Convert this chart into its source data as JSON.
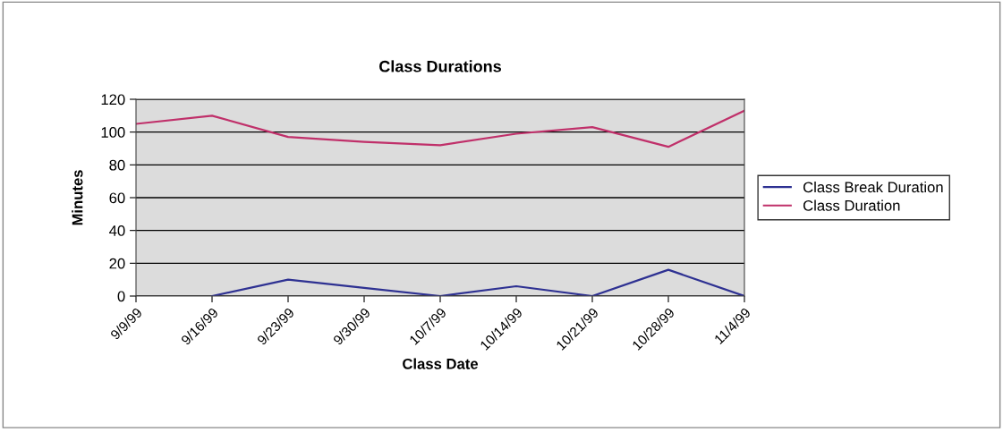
{
  "chart_data": {
    "type": "line",
    "title": "Class Durations",
    "xlabel": "Class Date",
    "ylabel": "Minutes",
    "categories": [
      "9/9/99",
      "9/16/99",
      "9/23/99",
      "9/30/99",
      "10/7/99",
      "10/14/99",
      "10/21/99",
      "10/28/99",
      "11/4/99"
    ],
    "series": [
      {
        "name": "Class Break Duration",
        "color": "#2e3192",
        "values": [
          null,
          0,
          10,
          5,
          0,
          6,
          0,
          16,
          0
        ]
      },
      {
        "name": "Class Duration",
        "color": "#c0306a",
        "values": [
          105,
          110,
          97,
          94,
          92,
          99,
          103,
          91,
          113
        ]
      }
    ],
    "ylim": [
      0,
      120
    ],
    "yticks": [
      0,
      20,
      40,
      60,
      80,
      100,
      120
    ],
    "grid": "y",
    "legend": "right",
    "marker": "none",
    "line_style": "solid"
  }
}
